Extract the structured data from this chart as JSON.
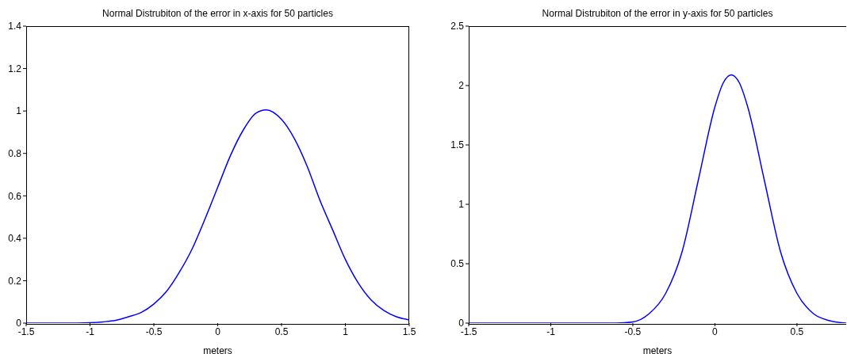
{
  "chart_data": [
    {
      "type": "line",
      "title": "Normal Distrubiton of the error in x-axis for 50 particles",
      "xlabel": "meters",
      "x": [
        -1.5,
        -1.2,
        -1.0,
        -0.9,
        -0.8,
        -0.7,
        -0.6,
        -0.5,
        -0.4,
        -0.3,
        -0.2,
        -0.1,
        0,
        0.1,
        0.2,
        0.3,
        0.38,
        0.5,
        0.6,
        0.7,
        0.8,
        0.9,
        1.0,
        1.1,
        1.2,
        1.3,
        1.4,
        1.5
      ],
      "series": [
        {
          "color": "#0000ff",
          "values": [
            0.0,
            0.0,
            0.002,
            0.006,
            0.013,
            0.03,
            0.05,
            0.09,
            0.15,
            0.24,
            0.35,
            0.49,
            0.64,
            0.79,
            0.91,
            0.99,
            1.005,
            0.96,
            0.87,
            0.74,
            0.58,
            0.44,
            0.3,
            0.19,
            0.11,
            0.06,
            0.03,
            0.015
          ]
        }
      ],
      "xlim": [
        -1.5,
        1.5
      ],
      "xticks": [
        -1.5,
        -1,
        -0.5,
        0,
        0.5,
        1,
        1.5
      ],
      "ylim": [
        0,
        1.4
      ],
      "yticks": [
        0,
        0.2,
        0.4,
        0.6,
        0.8,
        1,
        1.2,
        1.4
      ],
      "grid": false,
      "marker": "none",
      "line_style": "solid"
    },
    {
      "type": "line",
      "title": "Normal Distrubiton of the error in y-axis for 50 particles",
      "xlabel": "meters",
      "x": [
        -1.5,
        -1.0,
        -0.6,
        -0.5,
        -0.4,
        -0.3,
        -0.2,
        -0.1,
        0,
        0.05,
        0.1,
        0.15,
        0.2,
        0.3,
        0.4,
        0.5,
        0.6,
        0.7,
        0.8
      ],
      "series": [
        {
          "color": "#0000ff",
          "values": [
            0.0,
            0.0,
            0.0,
            0.01,
            0.08,
            0.25,
            0.6,
            1.21,
            1.82,
            2.02,
            2.09,
            2.02,
            1.82,
            1.21,
            0.6,
            0.25,
            0.08,
            0.02,
            0.0
          ]
        }
      ],
      "xlim": [
        -1.5,
        0.8
      ],
      "xticks": [
        -1.5,
        -1,
        -0.5,
        0,
        0.5
      ],
      "ylim": [
        0,
        2.5
      ],
      "yticks": [
        0,
        0.5,
        1,
        1.5,
        2,
        2.5
      ],
      "grid": false,
      "marker": "none",
      "line_style": "solid"
    }
  ]
}
